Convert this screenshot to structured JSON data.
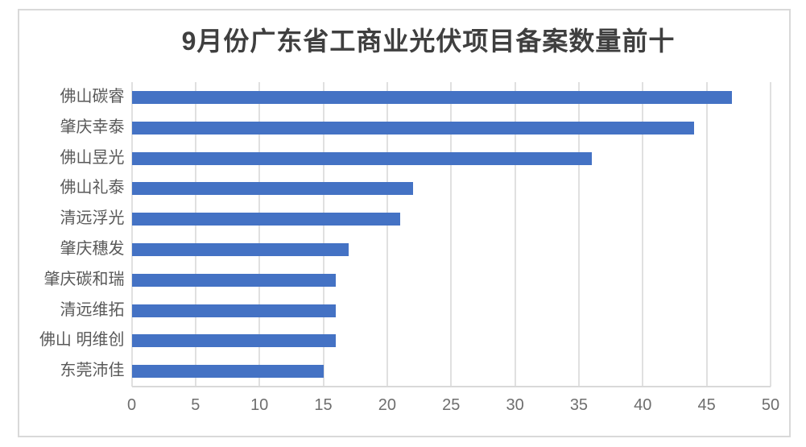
{
  "chart_data": {
    "type": "bar",
    "orientation": "horizontal",
    "title": "9月份广东省工商业光伏项目备案数量前十",
    "categories": [
      "佛山碳睿",
      "肇庆幸泰",
      "佛山昱光",
      "佛山礼泰",
      "清远浮光",
      "肇庆穗发",
      "肇庆碳和瑞",
      "清远维拓",
      "佛山 明维创",
      "东莞沛佳"
    ],
    "values": [
      47,
      44,
      36,
      22,
      21,
      17,
      16,
      16,
      16,
      15
    ],
    "xlabel": "",
    "ylabel": "",
    "xlim": [
      0,
      50
    ],
    "x_tick_step": 5,
    "x_tick_labels": [
      "0",
      "5",
      "10",
      "15",
      "20",
      "25",
      "30",
      "35",
      "40",
      "45",
      "50"
    ],
    "grid": "vertical-major",
    "legend_position": "none",
    "sort_order": "descending-top-to-bottom"
  },
  "colors": {
    "bar": "#4472C4",
    "gridline": "#E0E0E0",
    "axis_line": "#D9D9D9",
    "tick_label": "#6E6E6E",
    "category_label": "#595959",
    "title": "#3F3F3F",
    "chart_border": "#D9D9D9",
    "background": "#FFFFFF"
  }
}
